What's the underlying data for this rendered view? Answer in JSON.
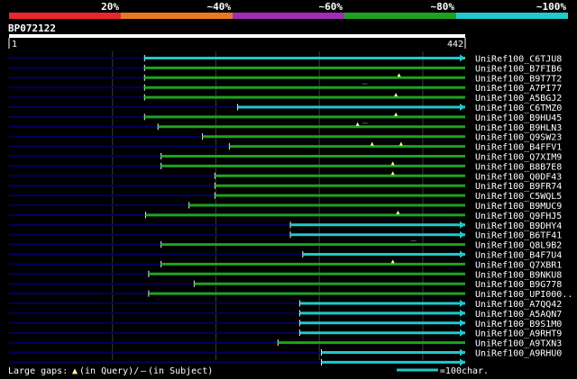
{
  "identity_legend": {
    "labels": [
      "20%",
      "~40%",
      "~60%",
      "~80%",
      "~100%"
    ],
    "colors": [
      "#e8262f",
      "#e77a21",
      "#a02db2",
      "#1fa123",
      "#21c8cc"
    ]
  },
  "query": {
    "name": "BP072122",
    "start": "1",
    "end": "442",
    "length": 442
  },
  "colors": {
    "query_bar": "#ffffff",
    "gap_line": "#000060",
    "grid": "#3a3a3a",
    "marker": "#ffff99",
    "gap_tick": "#555555"
  },
  "hits": [
    {
      "id": "UniRef100_C6TJU8",
      "start": 132,
      "end": 442,
      "color": "#21c8cc",
      "arrow": true,
      "q_gaps": [],
      "s_gaps": []
    },
    {
      "id": "UniRef100_B7FIB6",
      "start": 132,
      "end": 442,
      "color": "#1fa123",
      "arrow": false,
      "q_gaps": [],
      "s_gaps": []
    },
    {
      "id": "UniRef100_B9T7T2",
      "start": 132,
      "end": 442,
      "color": "#1fa123",
      "arrow": false,
      "q_gaps": [
        378
      ],
      "s_gaps": []
    },
    {
      "id": "UniRef100_A7PI77",
      "start": 132,
      "end": 442,
      "color": "#1fa123",
      "arrow": false,
      "q_gaps": [],
      "s_gaps": [
        345
      ]
    },
    {
      "id": "UniRef100_A5BGJ2",
      "start": 132,
      "end": 442,
      "color": "#1fa123",
      "arrow": false,
      "q_gaps": [
        375
      ],
      "s_gaps": []
    },
    {
      "id": "UniRef100_C6TMZ0",
      "start": 222,
      "end": 442,
      "color": "#21c8cc",
      "arrow": true,
      "q_gaps": [],
      "s_gaps": []
    },
    {
      "id": "UniRef100_B9HU45",
      "start": 132,
      "end": 442,
      "color": "#1fa123",
      "arrow": false,
      "q_gaps": [
        375
      ],
      "s_gaps": []
    },
    {
      "id": "UniRef100_B9HLN3",
      "start": 145,
      "end": 442,
      "color": "#1fa123",
      "arrow": false,
      "q_gaps": [
        338
      ],
      "s_gaps": [
        345
      ]
    },
    {
      "id": "UniRef100_Q9SW23",
      "start": 188,
      "end": 442,
      "color": "#1fa123",
      "arrow": false,
      "q_gaps": [],
      "s_gaps": []
    },
    {
      "id": "UniRef100_B4FFV1",
      "start": 214,
      "end": 442,
      "color": "#1fa123",
      "arrow": false,
      "q_gaps": [
        352,
        380
      ],
      "s_gaps": []
    },
    {
      "id": "UniRef100_Q7XIM9",
      "start": 148,
      "end": 442,
      "color": "#1fa123",
      "arrow": false,
      "q_gaps": [],
      "s_gaps": []
    },
    {
      "id": "UniRef100_B8B7E8",
      "start": 148,
      "end": 442,
      "color": "#1fa123",
      "arrow": false,
      "q_gaps": [
        372
      ],
      "s_gaps": []
    },
    {
      "id": "UniRef100_Q0DF43",
      "start": 200,
      "end": 442,
      "color": "#1fa123",
      "arrow": false,
      "q_gaps": [
        372
      ],
      "s_gaps": []
    },
    {
      "id": "UniRef100_B9FR74",
      "start": 200,
      "end": 442,
      "color": "#1fa123",
      "arrow": false,
      "q_gaps": [],
      "s_gaps": []
    },
    {
      "id": "UniRef100_C5WQL5",
      "start": 200,
      "end": 442,
      "color": "#1fa123",
      "arrow": false,
      "q_gaps": [],
      "s_gaps": []
    },
    {
      "id": "UniRef100_B9MUC9",
      "start": 175,
      "end": 442,
      "color": "#1fa123",
      "arrow": false,
      "q_gaps": [],
      "s_gaps": []
    },
    {
      "id": "UniRef100_Q9FHJ5",
      "start": 133,
      "end": 442,
      "color": "#1fa123",
      "arrow": false,
      "q_gaps": [
        377
      ],
      "s_gaps": []
    },
    {
      "id": "UniRef100_B9DHY4",
      "start": 273,
      "end": 442,
      "color": "#21c8cc",
      "arrow": true,
      "q_gaps": [],
      "s_gaps": []
    },
    {
      "id": "UniRef100_B6TF41",
      "start": 273,
      "end": 442,
      "color": "#21c8cc",
      "arrow": true,
      "q_gaps": [],
      "s_gaps": []
    },
    {
      "id": "UniRef100_Q8L9B2",
      "start": 148,
      "end": 442,
      "color": "#1fa123",
      "arrow": false,
      "q_gaps": [],
      "s_gaps": [
        392
      ]
    },
    {
      "id": "UniRef100_B4F7U4",
      "start": 285,
      "end": 442,
      "color": "#21c8cc",
      "arrow": true,
      "q_gaps": [],
      "s_gaps": []
    },
    {
      "id": "UniRef100_Q7XBR1",
      "start": 148,
      "end": 442,
      "color": "#1fa123",
      "arrow": false,
      "q_gaps": [
        372
      ],
      "s_gaps": []
    },
    {
      "id": "UniRef100_B9NKU8",
      "start": 136,
      "end": 442,
      "color": "#1fa123",
      "arrow": false,
      "q_gaps": [],
      "s_gaps": []
    },
    {
      "id": "UniRef100_B9G778",
      "start": 180,
      "end": 442,
      "color": "#1fa123",
      "arrow": false,
      "q_gaps": [],
      "s_gaps": []
    },
    {
      "id": "UniRef100_UPI000..",
      "start": 136,
      "end": 442,
      "color": "#1fa123",
      "arrow": false,
      "q_gaps": [],
      "s_gaps": []
    },
    {
      "id": "UniRef100_A7QQ42",
      "start": 282,
      "end": 442,
      "color": "#21c8cc",
      "arrow": true,
      "q_gaps": [],
      "s_gaps": []
    },
    {
      "id": "UniRef100_A5AQN7",
      "start": 282,
      "end": 442,
      "color": "#21c8cc",
      "arrow": true,
      "q_gaps": [],
      "s_gaps": []
    },
    {
      "id": "UniRef100_B9S1M0",
      "start": 282,
      "end": 442,
      "color": "#21c8cc",
      "arrow": true,
      "q_gaps": [],
      "s_gaps": []
    },
    {
      "id": "UniRef100_A9RHT9",
      "start": 282,
      "end": 442,
      "color": "#21c8cc",
      "arrow": true,
      "q_gaps": [],
      "s_gaps": []
    },
    {
      "id": "UniRef100_A9TXN3",
      "start": 261,
      "end": 442,
      "color": "#1fa123",
      "arrow": false,
      "q_gaps": [],
      "s_gaps": []
    },
    {
      "id": "UniRef100_A9RHU0",
      "start": 303,
      "end": 442,
      "color": "#21c8cc",
      "arrow": true,
      "q_gaps": [],
      "s_gaps": []
    },
    {
      "id": "",
      "start": 303,
      "end": 442,
      "color": "#21c8cc",
      "arrow": true,
      "q_gaps": [],
      "s_gaps": []
    }
  ],
  "footer": {
    "gaps_text": "Large gaps:",
    "query_marker": "▲",
    "query_text": "(in Query)/",
    "subject_marker": "–",
    "subject_text": "(in Subject)",
    "scale_text": "=100char.",
    "scale_units": 100
  }
}
